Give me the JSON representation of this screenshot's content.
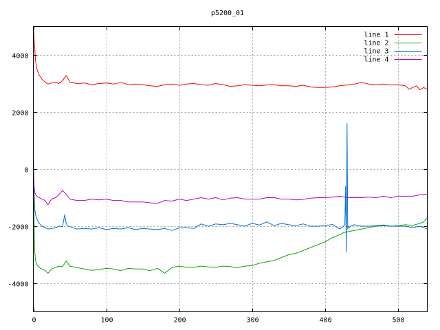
{
  "chart_data": {
    "type": "line",
    "title": "p5200_01",
    "xlabel": "",
    "ylabel": "",
    "xlim": [
      0,
      540
    ],
    "ylim": [
      -5000,
      5000
    ],
    "x_ticks": [
      0,
      100,
      200,
      300,
      400,
      500
    ],
    "y_ticks": [
      -4000,
      -2000,
      0,
      2000,
      4000
    ],
    "grid": true,
    "legend_position": "top-right",
    "series": [
      {
        "name": "line 1",
        "color": "#ff0000",
        "x": [
          0,
          1,
          2,
          3,
          5,
          8,
          12,
          16,
          20,
          25,
          30,
          35,
          40,
          45,
          50,
          60,
          70,
          80,
          90,
          100,
          110,
          120,
          130,
          140,
          150,
          160,
          170,
          180,
          190,
          200,
          210,
          220,
          230,
          240,
          250,
          260,
          270,
          280,
          290,
          300,
          310,
          320,
          330,
          340,
          350,
          360,
          370,
          380,
          390,
          400,
          410,
          420,
          430,
          440,
          450,
          460,
          470,
          480,
          490,
          500,
          510,
          515,
          520,
          525,
          530,
          535,
          540
        ],
        "y": [
          5000,
          4600,
          4200,
          3800,
          3500,
          3300,
          3150,
          3050,
          2980,
          3020,
          3050,
          3000,
          3100,
          3280,
          3050,
          3000,
          3020,
          2960,
          3000,
          3020,
          2980,
          3040,
          2960,
          2980,
          2960,
          2920,
          2900,
          2960,
          2980,
          2940,
          2980,
          3000,
          2960,
          2940,
          3000,
          2960,
          2900,
          2920,
          2960,
          2940,
          2920,
          2950,
          2960,
          2920,
          2920,
          2900,
          2940,
          2880,
          2860,
          2860,
          2880,
          2920,
          2950,
          2980,
          3040,
          2980,
          2960,
          2980,
          2950,
          2960,
          2920,
          2800,
          2860,
          2920,
          2780,
          2860,
          2790
        ]
      },
      {
        "name": "line 2",
        "color": "#00aa00",
        "x": [
          0,
          1,
          2,
          3,
          5,
          8,
          12,
          16,
          20,
          25,
          30,
          35,
          40,
          45,
          50,
          60,
          70,
          80,
          90,
          100,
          110,
          120,
          130,
          140,
          150,
          160,
          170,
          180,
          190,
          200,
          210,
          220,
          230,
          240,
          250,
          260,
          270,
          280,
          290,
          300,
          310,
          320,
          330,
          340,
          350,
          360,
          370,
          380,
          390,
          400,
          410,
          420,
          425,
          430,
          440,
          450,
          460,
          470,
          480,
          490,
          500,
          510,
          520,
          530,
          535,
          540
        ],
        "y": [
          -200,
          -1800,
          -2900,
          -3200,
          -3350,
          -3450,
          -3500,
          -3550,
          -3650,
          -3500,
          -3450,
          -3400,
          -3420,
          -3220,
          -3400,
          -3450,
          -3500,
          -3550,
          -3520,
          -3480,
          -3500,
          -3560,
          -3480,
          -3500,
          -3500,
          -3560,
          -3480,
          -3650,
          -3450,
          -3400,
          -3440,
          -3440,
          -3400,
          -3430,
          -3440,
          -3400,
          -3420,
          -3450,
          -3400,
          -3380,
          -3300,
          -3250,
          -3200,
          -3100,
          -3000,
          -2950,
          -2850,
          -2750,
          -2650,
          -2550,
          -2400,
          -2300,
          -2230,
          -2200,
          -2150,
          -2100,
          -2050,
          -2000,
          -1980,
          -2000,
          -1980,
          -1950,
          -1970,
          -1900,
          -1850,
          -1700
        ]
      },
      {
        "name": "line 3",
        "color": "#0070d0",
        "x": [
          0,
          1,
          2,
          3,
          5,
          8,
          12,
          16,
          20,
          25,
          30,
          35,
          40,
          43,
          45,
          47,
          50,
          60,
          70,
          80,
          90,
          100,
          110,
          120,
          130,
          140,
          150,
          160,
          170,
          180,
          190,
          200,
          210,
          220,
          230,
          240,
          250,
          260,
          270,
          280,
          290,
          300,
          310,
          320,
          330,
          340,
          350,
          360,
          370,
          380,
          390,
          400,
          410,
          420,
          425,
          427,
          428,
          429,
          430,
          431,
          432,
          433,
          435,
          440,
          450,
          460,
          470,
          480,
          490,
          500,
          510,
          520,
          530,
          540
        ],
        "y": [
          600,
          -800,
          -1400,
          -1600,
          -1750,
          -1900,
          -2000,
          -2050,
          -2100,
          -2080,
          -2060,
          -2000,
          -2020,
          -1600,
          -1900,
          -2000,
          -2020,
          -2100,
          -2080,
          -2100,
          -2050,
          -2120,
          -2080,
          -2100,
          -2050,
          -2120,
          -2080,
          -2100,
          -2120,
          -2080,
          -2150,
          -2060,
          -2050,
          -2080,
          -1920,
          -2000,
          -1920,
          -1950,
          -1900,
          -1950,
          -2000,
          -1900,
          -1960,
          -1850,
          -1980,
          -1900,
          -1950,
          -1980,
          -1920,
          -2000,
          -2000,
          -1980,
          -1940,
          -2100,
          -2000,
          -1950,
          -600,
          -2900,
          1600,
          -2100,
          -2000,
          -2050,
          -2000,
          -1950,
          -2000,
          -2000,
          -1980,
          -1960,
          -2000,
          -2000,
          -2000,
          -2050,
          -2000,
          -2100
        ]
      },
      {
        "name": "line 4",
        "color": "#c000c0",
        "x": [
          0,
          1,
          2,
          3,
          5,
          8,
          12,
          16,
          20,
          25,
          30,
          35,
          40,
          45,
          50,
          60,
          70,
          80,
          90,
          100,
          110,
          120,
          130,
          140,
          150,
          160,
          170,
          180,
          190,
          200,
          210,
          220,
          230,
          240,
          250,
          260,
          270,
          280,
          290,
          300,
          310,
          320,
          330,
          340,
          350,
          360,
          370,
          380,
          390,
          400,
          410,
          420,
          430,
          440,
          450,
          460,
          470,
          480,
          490,
          500,
          510,
          520,
          530,
          535,
          540
        ],
        "y": [
          0,
          -600,
          -800,
          -900,
          -950,
          -1000,
          -1050,
          -1100,
          -1250,
          -1050,
          -1000,
          -900,
          -750,
          -880,
          -1050,
          -1100,
          -1100,
          -1050,
          -1080,
          -1050,
          -1100,
          -1100,
          -1150,
          -1150,
          -1150,
          -1180,
          -1200,
          -1100,
          -1120,
          -1050,
          -1100,
          -1050,
          -1000,
          -1050,
          -1000,
          -1080,
          -1020,
          -1000,
          -1050,
          -1050,
          -1050,
          -1000,
          -1000,
          -1050,
          -1050,
          -1080,
          -1060,
          -1020,
          -1000,
          -1000,
          -980,
          -950,
          -1000,
          -1000,
          -1000,
          -980,
          -1000,
          -950,
          -1000,
          -950,
          -950,
          -950,
          -900,
          -880,
          -880
        ]
      }
    ]
  }
}
